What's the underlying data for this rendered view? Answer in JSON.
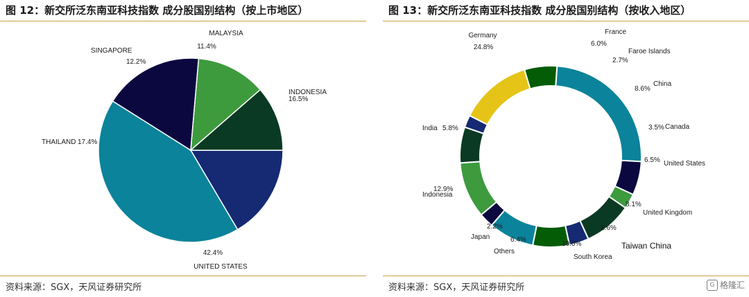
{
  "left": {
    "title": "图 12：新交所泛东南亚科技指数 成分股国别结构（按上市地区）",
    "source": "资料来源：SGX，天风证券研究所"
  },
  "right": {
    "title": "图 13：新交所泛东南亚科技指数 成分股国别结构（按收入地区）",
    "source": "资料来源：SGX，天风证券研究所"
  },
  "watermark": {
    "text": "格隆汇",
    "icon": "brand-logo-icon"
  },
  "chart_data": [
    {
      "type": "pie",
      "title": "",
      "categories": [
        "INDONESIA",
        "UNITED STATES",
        "THAILAND",
        "SINGAPORE",
        "MALAYSIA"
      ],
      "values": [
        16.5,
        42.4,
        17.4,
        12.2,
        11.4
      ],
      "labels": [
        "16.5%",
        "42.4%",
        "17.4%",
        "12.2%",
        "11.4%"
      ],
      "colors": [
        "#152a73",
        "#0a839b",
        "#0b0840",
        "#3d9b3e",
        "#0a3a23"
      ]
    },
    {
      "type": "pie",
      "subtype": "donut",
      "title": "",
      "categories": [
        "Germany",
        "France",
        "Faroe Islands",
        "China",
        "Canada",
        "United States",
        "United Kingdom",
        "Taiwan China",
        "South Korea",
        "Others",
        "Japan",
        "Indonesia",
        "India"
      ],
      "values": [
        24.8,
        6.0,
        2.7,
        8.6,
        3.5,
        6.5,
        8.1,
        2.6,
        10.0,
        6.4,
        2.2,
        12.9,
        5.8
      ],
      "labels": [
        "24.8%",
        "6.0%",
        "2.7%",
        "8.6%",
        "3.5%",
        "6.5%",
        "8.1%",
        "2.6%",
        "10.0%",
        "6.4%",
        "2.2%",
        "12.9%",
        "5.8%"
      ],
      "colors": [
        "#0a839b",
        "#0b0840",
        "#3d9b3e",
        "#0a3a23",
        "#152a73",
        "#045c07",
        "#0a839b",
        "#0b0840",
        "#3d9b3e",
        "#0a3a23",
        "#152a73",
        "#e5c417",
        "#045c07"
      ]
    }
  ]
}
